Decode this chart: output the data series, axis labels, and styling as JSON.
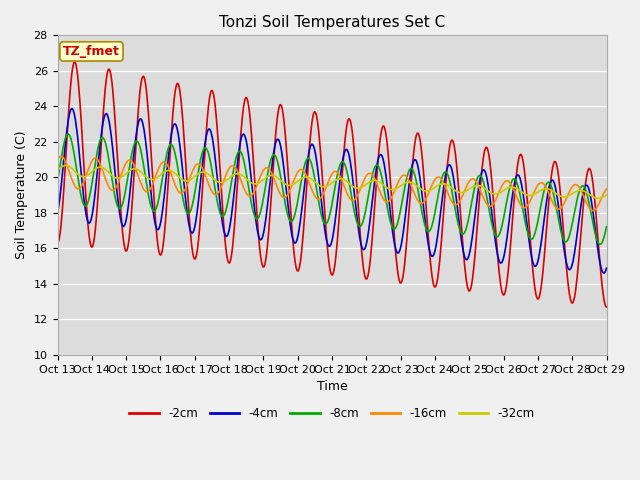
{
  "title": "Tonzi Soil Temperatures Set C",
  "xlabel": "Time",
  "ylabel": "Soil Temperature (C)",
  "ylim": [
    10,
    28
  ],
  "yticks": [
    10,
    12,
    14,
    16,
    18,
    20,
    22,
    24,
    26,
    28
  ],
  "annotation": "TZ_fmet",
  "annotation_color": "#cc0000",
  "annotation_bg": "#ffffcc",
  "annotation_border": "#aa8800",
  "series": [
    {
      "label": "-2cm",
      "color": "#dd0000",
      "lw": 1.2
    },
    {
      "label": "-4cm",
      "color": "#0000cc",
      "lw": 1.2
    },
    {
      "label": "-8cm",
      "color": "#00aa00",
      "lw": 1.2
    },
    {
      "label": "-16cm",
      "color": "#ff8800",
      "lw": 1.2
    },
    {
      "label": "-32cm",
      "color": "#cccc00",
      "lw": 1.2
    }
  ],
  "xtick_labels": [
    "Oct 13",
    "Oct 14",
    "Oct 15",
    "Oct 16",
    "Oct 17",
    "Oct 18",
    "Oct 19",
    "Oct 20",
    "Oct 21",
    "Oct 22",
    "Oct 23",
    "Oct 24",
    "Oct 25",
    "Oct 26",
    "Oct 27",
    "Oct 28",
    "Oct 29"
  ],
  "n_days": 16,
  "pts_per_day": 48
}
